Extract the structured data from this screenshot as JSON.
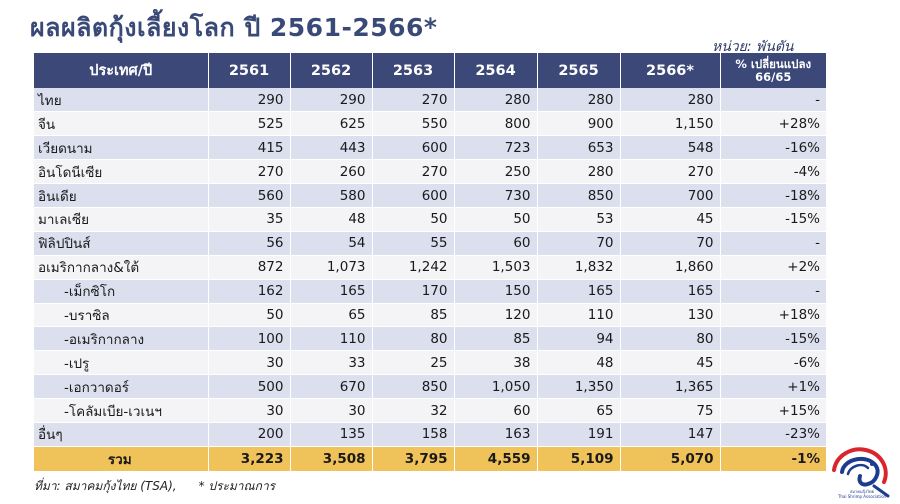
{
  "title": "ผลผลิตกุ้งเลี้ยงโลก  ปี 2561-2566*",
  "unit": "หน่วย: พันตัน",
  "headers": [
    "ประเทศ/ปี",
    "2561",
    "2562",
    "2563",
    "2564",
    "2565",
    "2566*",
    "% เปลี่ยนแปลง 66/65"
  ],
  "rows": [
    {
      "name": "ไทย",
      "sub": false,
      "values": [
        "290",
        "290",
        "270",
        "280",
        "280",
        "280",
        "-"
      ]
    },
    {
      "name": "จีน",
      "sub": false,
      "values": [
        "525",
        "625",
        "550",
        "800",
        "900",
        "1,150",
        "+28%"
      ]
    },
    {
      "name": "เวียดนาม",
      "sub": false,
      "values": [
        "415",
        "443",
        "600",
        "723",
        "653",
        "548",
        "-16%"
      ]
    },
    {
      "name": "อินโดนีเซีย",
      "sub": false,
      "values": [
        "270",
        "260",
        "270",
        "250",
        "280",
        "270",
        "-4%"
      ]
    },
    {
      "name": "อินเดีย",
      "sub": false,
      "values": [
        "560",
        "580",
        "600",
        "730",
        "850",
        "700",
        "-18%"
      ]
    },
    {
      "name": "มาเลเซีย",
      "sub": false,
      "values": [
        "35",
        "48",
        "50",
        "50",
        "53",
        "45",
        "-15%"
      ]
    },
    {
      "name": "ฟิลิปปินส์",
      "sub": false,
      "values": [
        "56",
        "54",
        "55",
        "60",
        "70",
        "70",
        "-"
      ]
    },
    {
      "name": "อเมริกากลาง&ใต้",
      "sub": false,
      "values": [
        "872",
        "1,073",
        "1,242",
        "1,503",
        "1,832",
        "1,860",
        "+2%"
      ]
    },
    {
      "name": "-เม็กซิโก",
      "sub": true,
      "values": [
        "162",
        "165",
        "170",
        "150",
        "165",
        "165",
        "-"
      ]
    },
    {
      "name": "-บราซิล",
      "sub": true,
      "values": [
        "50",
        "65",
        "85",
        "120",
        "110",
        "130",
        "+18%"
      ]
    },
    {
      "name": "-อเมริกากลาง",
      "sub": true,
      "values": [
        "100",
        "110",
        "80",
        "85",
        "94",
        "80",
        "-15%"
      ]
    },
    {
      "name": "-เปรู",
      "sub": true,
      "values": [
        "30",
        "33",
        "25",
        "38",
        "48",
        "45",
        "-6%"
      ]
    },
    {
      "name": "-เอกวาดอร์",
      "sub": true,
      "values": [
        "500",
        "670",
        "850",
        "1,050",
        "1,350",
        "1,365",
        "+1%"
      ]
    },
    {
      "name": "-โคลัมเบีย-เวเนฯ",
      "sub": true,
      "values": [
        "30",
        "30",
        "32",
        "60",
        "65",
        "75",
        "+15%"
      ]
    },
    {
      "name": "อื่นๆ",
      "sub": false,
      "values": [
        "200",
        "135",
        "158",
        "163",
        "191",
        "147",
        "-23%"
      ]
    }
  ],
  "total": {
    "name": "รวม",
    "values": [
      "3,223",
      "3,508",
      "3,795",
      "4,559",
      "5,109",
      "5,070",
      "-1%"
    ]
  },
  "footer": {
    "source": "ที่มา: สมาคมกุ้งไทย  (TSA),",
    "note": "*  ประมาณการ"
  },
  "logo": {
    "icon": "thai-shrimp-association-logo",
    "label_th": "สมาคมกุ้งไทย",
    "label_en": "Thai Shrimp Association"
  },
  "colors": {
    "header_bg": "#3b4878",
    "row_odd": "#dcdfee",
    "row_even": "#f4f4f6",
    "total_bg": "#f0c35a",
    "title": "#3a4a78"
  }
}
